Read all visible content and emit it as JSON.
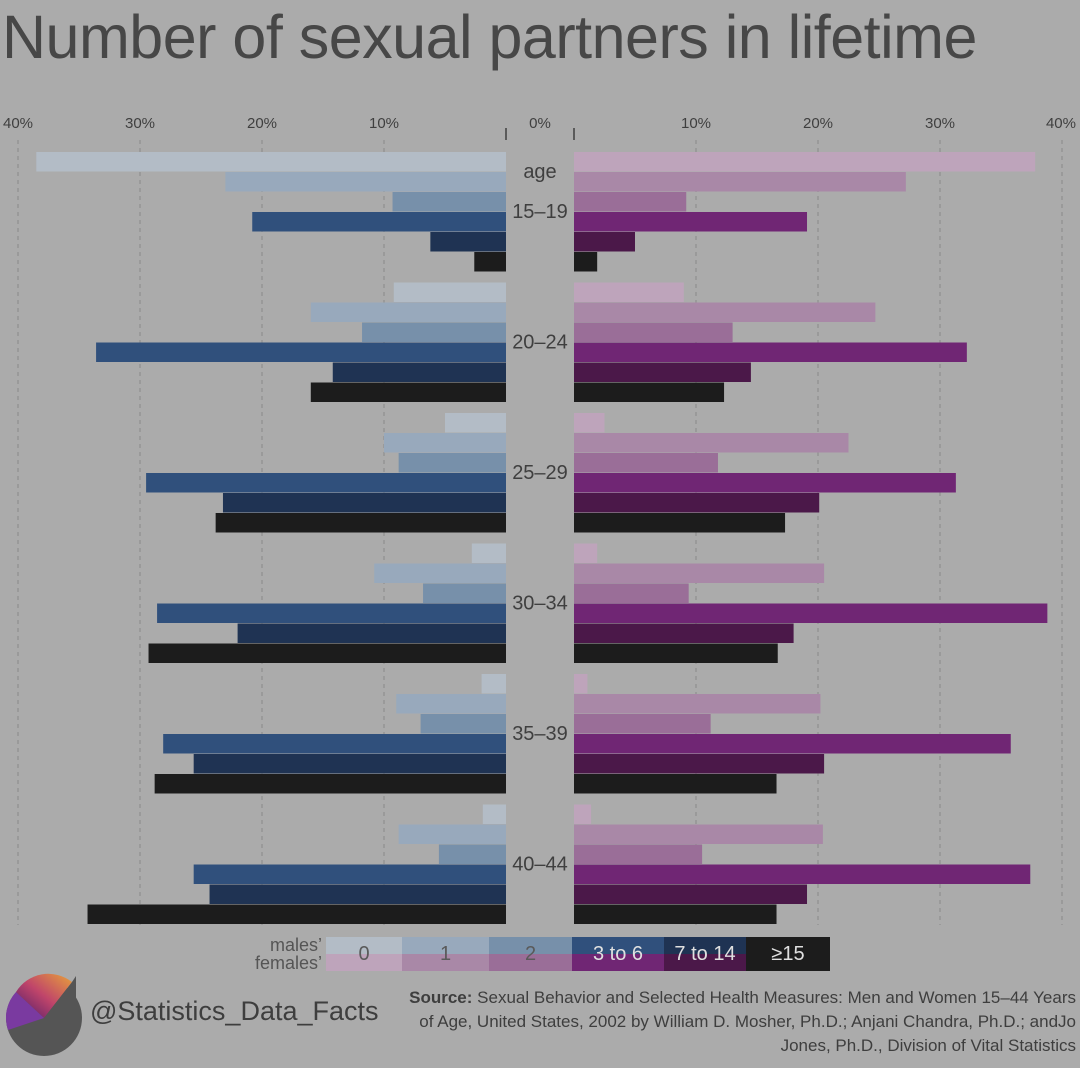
{
  "title": "Number of sexual partners in lifetime",
  "colors": {
    "male": [
      "#b3bcc6",
      "#98a9bc",
      "#7790aa",
      "#30507c",
      "#1f3353",
      "#1c1c1c"
    ],
    "female": [
      "#bea4bb",
      "#a988a7",
      "#9a6e98",
      "#702674",
      "#4b1849",
      "#1c1c1c"
    ],
    "grid": "#8a8a8a",
    "background": "#ababab"
  },
  "legend": {
    "males_label": "males’",
    "females_label": "females’",
    "categories": [
      "0",
      "1",
      "2",
      "3 to 6",
      "7 to 14",
      "≥15"
    ]
  },
  "handle": "@Statistics_Data_Facts",
  "source_label": "Source:",
  "source_text": "Sexual Behavior and Selected Health Measures: Men and Women 15–44 Years  of Age, United States, 2002 by William D. Mosher, Ph.D.; Anjani Chandra, Ph.D.; andJo Jones, Ph.D., Division of Vital Statistics",
  "chart_data": {
    "type": "bar",
    "orientation": "horizontal, back-to-back",
    "title": "Number of sexual partners in lifetime",
    "left_ticks": [
      "40%",
      "30%",
      "20%",
      "10%"
    ],
    "center_tick": "0%",
    "right_ticks": [
      "10%",
      "20%",
      "30%",
      "40%"
    ],
    "xlim": [
      0,
      40
    ],
    "grid": true,
    "group_axis_label": "age",
    "categories": [
      "15–19",
      "20–24",
      "25–29",
      "30–34",
      "35–39",
      "40–44"
    ],
    "series_names": [
      "0",
      "1",
      "2",
      "3 to 6",
      "7 to 14",
      "≥15"
    ],
    "males": [
      [
        38.5,
        23,
        9.3,
        20.8,
        6.2,
        2.6
      ],
      [
        9.2,
        16,
        11.8,
        33.6,
        14.2,
        16
      ],
      [
        5,
        10,
        8.8,
        29.5,
        23.2,
        23.8
      ],
      [
        2.8,
        10.8,
        6.8,
        28.6,
        22,
        29.3
      ],
      [
        2,
        9,
        7,
        28.1,
        25.6,
        28.8
      ],
      [
        1.9,
        8.8,
        5.5,
        25.6,
        24.3,
        34.3
      ]
    ],
    "females": [
      [
        37.8,
        27.2,
        9.2,
        19.1,
        5,
        1.9
      ],
      [
        9,
        24.7,
        13,
        32.2,
        14.5,
        12.3
      ],
      [
        2.5,
        22.5,
        11.8,
        31.3,
        20.1,
        17.3
      ],
      [
        1.9,
        20.5,
        9.4,
        38.8,
        18,
        16.7
      ],
      [
        1.1,
        20.2,
        11.2,
        35.8,
        20.5,
        16.6
      ],
      [
        1.4,
        20.4,
        10.5,
        37.4,
        19.1,
        16.6
      ]
    ]
  }
}
